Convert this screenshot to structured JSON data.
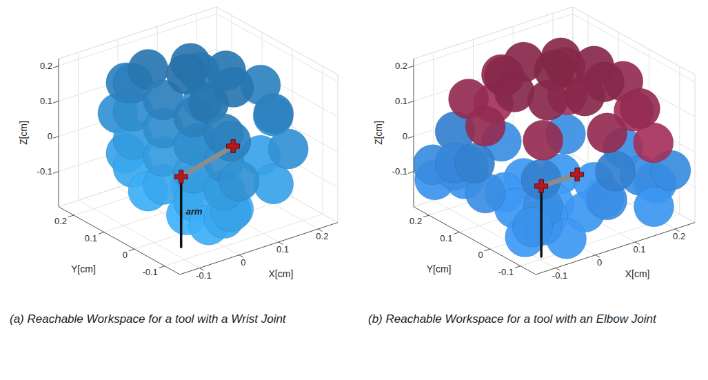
{
  "chart_data": [
    {
      "type": "scatter3d",
      "caption": "(a) Reachable Workspace for a tool with a Wrist Joint",
      "xlabel": "X[cm]",
      "ylabel": "Y[cm]",
      "zlabel": "Z[cm]",
      "xlim": [
        -0.15,
        0.25
      ],
      "ylim": [
        -0.15,
        0.25
      ],
      "zlim": [
        -0.2,
        0.22
      ],
      "xticks": [
        -0.1,
        0,
        0.1,
        0.2
      ],
      "yticks": [
        -0.1,
        0,
        0.1,
        0.2
      ],
      "zticks": [
        -0.1,
        0,
        0.1,
        0.2
      ],
      "grid": true,
      "series": [
        {
          "color": "#2a7ab8",
          "x": [
            0,
            0.17,
            0.24,
            0.17,
            0,
            0,
            0.147,
            0.208,
            0.147,
            0,
            0,
            0.147,
            0.208,
            0.147,
            0,
            0,
            0.085,
            0.12,
            0.085,
            0,
            0,
            0.085,
            0.12,
            0.085,
            0,
            0.02,
            0.02,
            0,
            0,
            0,
            0,
            0,
            0,
            0,
            0,
            0,
            0,
            0,
            0,
            0,
            0,
            0,
            0
          ],
          "y": [
            -0.15,
            -0.091,
            0.05,
            0.191,
            0.25,
            -0.123,
            -0.072,
            0.05,
            0.172,
            0.223,
            -0.123,
            -0.072,
            0.05,
            0.172,
            0.223,
            -0.05,
            -0.021,
            0.05,
            0.121,
            0.15,
            -0.05,
            -0.021,
            0.05,
            0.121,
            0.15,
            0.05,
            0.05,
            -0.1,
            -0.1,
            -0.1,
            -0.1,
            0,
            0,
            0,
            0,
            0.1,
            0.1,
            0.1,
            0.1,
            0.2,
            0.2,
            0.2,
            0.2
          ],
          "z": [
            0.01,
            0.01,
            0.01,
            0.01,
            0.01,
            0.11,
            0.11,
            0.11,
            0.11,
            0.11,
            -0.09,
            -0.09,
            -0.09,
            -0.09,
            -0.09,
            0.183,
            0.183,
            0.183,
            0.183,
            0.183,
            -0.163,
            -0.163,
            -0.163,
            -0.163,
            -0.163,
            0.21,
            -0.19,
            -0.12,
            -0.04,
            0.04,
            0.12,
            -0.12,
            -0.04,
            0.04,
            0.12,
            -0.12,
            -0.04,
            0.04,
            0.12,
            -0.12,
            -0.04,
            0.04,
            0.12
          ]
        }
      ],
      "arm": {
        "label": "arm",
        "x": [
          -0.07,
          -0.07,
          0.1
        ],
        "y": [
          -0.05,
          -0.05,
          0
        ],
        "z": [
          -0.2,
          0,
          0
        ]
      }
    },
    {
      "type": "scatter3d",
      "caption": "(b) Reachable Workspace for a tool with an Elbow Joint",
      "xlabel": "X[cm]",
      "ylabel": "Y[cm]",
      "zlabel": "Z[cm]",
      "xlim": [
        -0.15,
        0.25
      ],
      "ylim": [
        -0.15,
        0.25
      ],
      "zlim": [
        -0.2,
        0.22
      ],
      "xticks": [
        -0.1,
        0,
        0.1,
        0.2
      ],
      "yticks": [
        -0.1,
        0,
        0.1,
        0.2
      ],
      "zticks": [
        -0.1,
        0,
        0.1,
        0.2
      ],
      "grid": true,
      "series": [
        {
          "color": "#8c2a4c",
          "x": [
            0.15,
            0.121,
            0.05,
            -0.021,
            -0.05,
            -0.021,
            0.05,
            0.121,
            0.223,
            0.172,
            0.05,
            -0.072,
            -0.123,
            -0.072,
            0.05,
            0.172,
            0.05,
            0.25,
            0.191,
            0.05,
            0.191
          ],
          "y": [
            0.05,
            0.121,
            0.15,
            0.121,
            0.05,
            -0.021,
            -0.05,
            -0.021,
            0.05,
            0.172,
            0.223,
            0.172,
            0.05,
            -0.072,
            -0.123,
            -0.072,
            0.05,
            0.05,
            0.191,
            0.25,
            -0.091
          ],
          "z": [
            0.185,
            0.185,
            0.185,
            0.185,
            0.185,
            0.185,
            0.185,
            0.185,
            0.115,
            0.115,
            0.115,
            0.115,
            0.115,
            0.115,
            0.115,
            0.115,
            0.21,
            0.02,
            0.02,
            0.02,
            0.02
          ]
        },
        {
          "color": "#2b6cb0",
          "x": [
            -0.091,
            -0.15,
            -0.091,
            0.05,
            0.223,
            0.172,
            0.05,
            -0.072,
            -0.123,
            -0.072,
            0.05,
            0.172,
            0.15,
            0.121,
            0.05,
            -0.021,
            -0.05,
            -0.021,
            0.05,
            0.121,
            0.05,
            -0.1,
            -0.14,
            -0.12,
            -0.06,
            -0.13,
            -0.08,
            -0.12,
            -0.05,
            -0.1,
            0.2,
            0.23,
            0.17,
            0.22
          ],
          "y": [
            0.191,
            0.05,
            -0.091,
            -0.15,
            0.05,
            0.172,
            0.223,
            0.172,
            0.05,
            -0.072,
            -0.123,
            -0.072,
            0.05,
            0.121,
            0.15,
            0.121,
            0.05,
            -0.021,
            -0.05,
            -0.021,
            0.05,
            0.18,
            0.2,
            0.22,
            0.2,
            0.14,
            -0.08,
            -0.1,
            -0.12,
            -0.05,
            -0.08,
            -0.05,
            -0.12,
            -0.11
          ],
          "z": [
            0.02,
            0.02,
            0.02,
            0.02,
            -0.075,
            -0.075,
            -0.075,
            -0.075,
            -0.075,
            -0.075,
            -0.075,
            -0.075,
            -0.145,
            -0.145,
            -0.145,
            -0.145,
            -0.145,
            -0.145,
            -0.145,
            -0.145,
            -0.17,
            -0.08,
            -0.06,
            -0.12,
            -0.13,
            -0.03,
            -0.12,
            -0.1,
            -0.15,
            -0.16,
            -0.1,
            -0.13,
            -0.14,
            -0.06
          ]
        }
      ],
      "arm": {
        "x": [
          -0.09,
          -0.09,
          0
        ],
        "y": [
          -0.09,
          -0.09,
          -0.09
        ],
        "z": [
          -0.2,
          0,
          0
        ]
      }
    }
  ]
}
